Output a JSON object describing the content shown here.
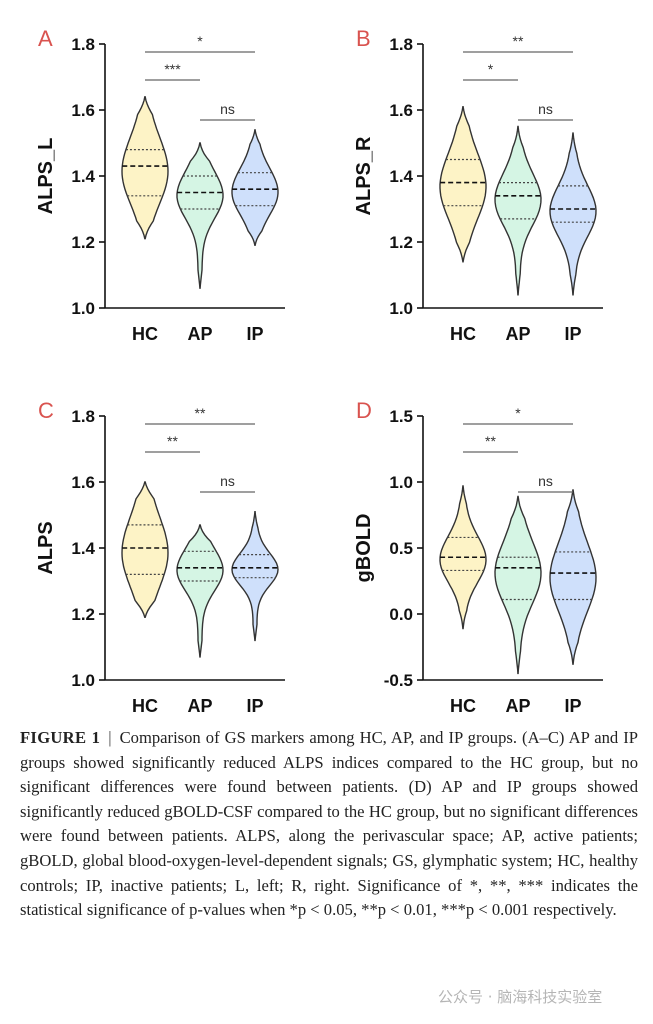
{
  "figure": {
    "colors": {
      "HC": "#fdf3c6",
      "AP": "#d5f5e4",
      "IP": "#cfe0fb",
      "outline": "#333333",
      "panel_letter": "#d9534f"
    },
    "chart_data": [
      {
        "type": "violin",
        "panel": "A",
        "ylabel": "ALPS_L",
        "categories": [
          "HC",
          "AP",
          "IP"
        ],
        "ylim": [
          1.0,
          1.8
        ],
        "yticks": [
          1.0,
          1.2,
          1.4,
          1.6,
          1.8
        ],
        "ytick_labels": [
          "1.0",
          "1.2",
          "1.4",
          "1.6",
          "1.8"
        ],
        "series": [
          {
            "name": "HC",
            "min": 1.21,
            "q1": 1.34,
            "median": 1.43,
            "q3": 1.48,
            "max": 1.64
          },
          {
            "name": "AP",
            "min": 1.06,
            "q1": 1.3,
            "median": 1.35,
            "q3": 1.4,
            "max": 1.5
          },
          {
            "name": "IP",
            "min": 1.19,
            "q1": 1.31,
            "median": 1.36,
            "q3": 1.41,
            "max": 1.54
          }
        ],
        "significance": [
          {
            "from": "HC",
            "to": "IP",
            "label": "*"
          },
          {
            "from": "HC",
            "to": "AP",
            "label": "***"
          },
          {
            "from": "AP",
            "to": "IP",
            "label": "ns"
          }
        ]
      },
      {
        "type": "violin",
        "panel": "B",
        "ylabel": "ALPS_R",
        "categories": [
          "HC",
          "AP",
          "IP"
        ],
        "ylim": [
          1.0,
          1.8
        ],
        "yticks": [
          1.0,
          1.2,
          1.4,
          1.6,
          1.8
        ],
        "ytick_labels": [
          "1.0",
          "1.2",
          "1.4",
          "1.6",
          "1.8"
        ],
        "series": [
          {
            "name": "HC",
            "min": 1.14,
            "q1": 1.31,
            "median": 1.38,
            "q3": 1.45,
            "max": 1.61
          },
          {
            "name": "AP",
            "min": 1.04,
            "q1": 1.27,
            "median": 1.34,
            "q3": 1.38,
            "max": 1.55
          },
          {
            "name": "IP",
            "min": 1.04,
            "q1": 1.26,
            "median": 1.3,
            "q3": 1.37,
            "max": 1.53
          }
        ],
        "significance": [
          {
            "from": "HC",
            "to": "IP",
            "label": "**"
          },
          {
            "from": "HC",
            "to": "AP",
            "label": "*"
          },
          {
            "from": "AP",
            "to": "IP",
            "label": "ns"
          }
        ]
      },
      {
        "type": "violin",
        "panel": "C",
        "ylabel": "ALPS",
        "categories": [
          "HC",
          "AP",
          "IP"
        ],
        "ylim": [
          1.0,
          1.8
        ],
        "yticks": [
          1.0,
          1.2,
          1.4,
          1.6,
          1.8
        ],
        "ytick_labels": [
          "1.0",
          "1.2",
          "1.4",
          "1.6",
          "1.8"
        ],
        "series": [
          {
            "name": "HC",
            "min": 1.19,
            "q1": 1.32,
            "median": 1.4,
            "q3": 1.47,
            "max": 1.6
          },
          {
            "name": "AP",
            "min": 1.07,
            "q1": 1.3,
            "median": 1.34,
            "q3": 1.39,
            "max": 1.47
          },
          {
            "name": "IP",
            "min": 1.12,
            "q1": 1.31,
            "median": 1.34,
            "q3": 1.38,
            "max": 1.51
          }
        ],
        "significance": [
          {
            "from": "HC",
            "to": "IP",
            "label": "**"
          },
          {
            "from": "HC",
            "to": "AP",
            "label": "**"
          },
          {
            "from": "AP",
            "to": "IP",
            "label": "ns"
          }
        ]
      },
      {
        "type": "violin",
        "panel": "D",
        "ylabel": "gBOLD",
        "categories": [
          "HC",
          "AP",
          "IP"
        ],
        "ylim": [
          -0.5,
          1.5
        ],
        "yticks": [
          -0.5,
          0.0,
          0.5,
          1.0,
          1.5
        ],
        "ytick_labels": [
          "-0.5",
          "0.0",
          "0.5",
          "1.0",
          "1.5"
        ],
        "series": [
          {
            "name": "HC",
            "min": -0.11,
            "q1": 0.33,
            "median": 0.43,
            "q3": 0.58,
            "max": 0.97
          },
          {
            "name": "AP",
            "min": -0.45,
            "q1": 0.11,
            "median": 0.35,
            "q3": 0.43,
            "max": 0.89
          },
          {
            "name": "IP",
            "min": -0.38,
            "q1": 0.11,
            "median": 0.31,
            "q3": 0.47,
            "max": 0.94
          }
        ],
        "significance": [
          {
            "from": "HC",
            "to": "IP",
            "label": "*"
          },
          {
            "from": "HC",
            "to": "AP",
            "label": "**"
          },
          {
            "from": "AP",
            "to": "IP",
            "label": "ns"
          }
        ]
      }
    ]
  },
  "caption": {
    "title": "FIGURE 1",
    "separator": "|",
    "text": "Comparison of GS markers among HC, AP, and IP groups. (A–C) AP and IP groups showed significantly reduced ALPS indices compared to the HC group, but no significant differences were found between patients. (D) AP and IP groups showed significantly reduced gBOLD-CSF compared to the HC group, but no significant differences were found between patients. ALPS, along the perivascular space; AP, active patients; gBOLD, global blood-oxygen-level-dependent signals; GS, glymphatic system; HC, healthy controls; IP, inactive patients; L, left; R, right. Significance of *, **, *** indicates the statistical significance of p-values when *p < 0.05, **p < 0.01, ***p < 0.001 respectively."
  },
  "watermark": "公众号 · 脑海科技实验室"
}
